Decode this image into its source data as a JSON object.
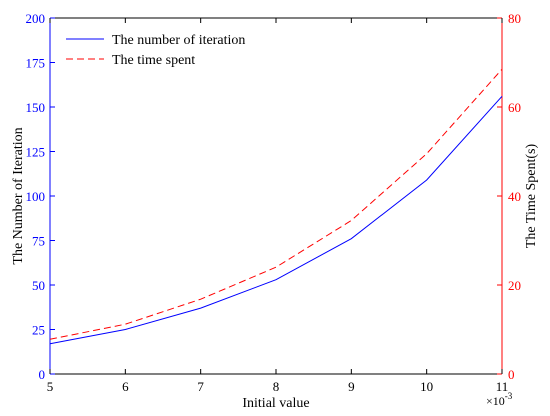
{
  "chart_data": {
    "type": "line",
    "x": [
      5,
      6,
      7,
      8,
      9,
      10,
      11
    ],
    "x_exponent_label": "×10",
    "x_exponent_power": "-3",
    "xlabel": "Initial value",
    "xlim": [
      5,
      11
    ],
    "x_ticks": [
      "5",
      "6",
      "7",
      "8",
      "9",
      "10",
      "11"
    ],
    "ylabel_left": "The Number of Iteration",
    "ylim_left": [
      0,
      200
    ],
    "y_ticks_left": [
      "0",
      "25",
      "50",
      "75",
      "100",
      "125",
      "150",
      "175",
      "200"
    ],
    "ylabel_right": "The Time Spent(s)",
    "ylim_right": [
      0,
      80
    ],
    "y_ticks_right": [
      "0",
      "20",
      "40",
      "60",
      "80"
    ],
    "grid": false,
    "legend_position": "top-left",
    "series": [
      {
        "name": "The number of iteration",
        "axis": "left",
        "values": [
          17,
          25,
          37,
          53,
          76,
          109,
          156
        ],
        "color": "#0000ff",
        "style": "solid"
      },
      {
        "name": "The time spent",
        "axis": "right",
        "values": [
          7.8,
          11.2,
          16.8,
          24,
          34.5,
          49.5,
          68.5
        ],
        "color": "#ff0000",
        "style": "dashed"
      }
    ],
    "left_axis_color": "#0000ff",
    "right_axis_color": "#ff0000"
  }
}
